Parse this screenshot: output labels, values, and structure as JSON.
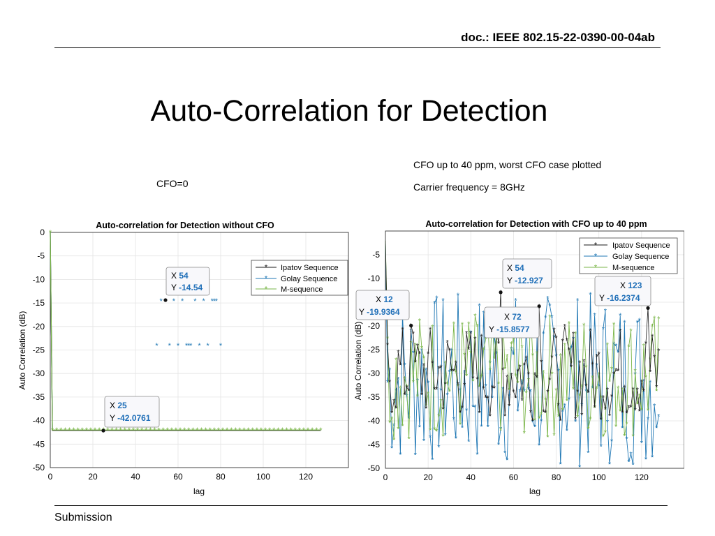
{
  "doc": {
    "id": "doc.: IEEE 802.15-22-0390-00-04ab"
  },
  "slide": {
    "title": "Auto-Correlation for Detection"
  },
  "notes": {
    "cfo_zero": "CFO=0",
    "cfo_worst": "CFO up to 40 ppm, worst CFO case plotted",
    "carrier": "Carrier frequency = 8GHz"
  },
  "footer": {
    "label": "Submission"
  },
  "colors": {
    "ipatov": "#1a1a1a",
    "golay": "#1f77b4",
    "mseq": "#7ab648",
    "datatip_value": "#1f6fb8"
  },
  "chart_data": [
    {
      "type": "scatter",
      "title": "Auto-correlation for Detection without CFO",
      "xlabel": "lag",
      "ylabel": "Auto Correlation (dB)",
      "xlim": [
        0,
        140
      ],
      "ylim": [
        -50,
        0
      ],
      "xticks": [
        0,
        20,
        40,
        60,
        80,
        100,
        120
      ],
      "yticks": [
        0,
        -5,
        -10,
        -15,
        -20,
        -25,
        -30,
        -35,
        -40,
        -45,
        -50
      ],
      "grid": true,
      "legend": [
        "Ipatov Sequence",
        "Golay Sequence",
        "M-sequence"
      ],
      "legend_position": "top-right",
      "series": [
        {
          "name": "Ipatov Sequence",
          "values": "0 at lag 0, then -42.0761 for lags 1-127"
        },
        {
          "name": "Golay Sequence",
          "points": [
            [
              0,
              0
            ],
            [
              50,
              -24
            ],
            [
              52,
              -14.54
            ],
            [
              54,
              -14.54
            ],
            [
              56,
              -24
            ],
            [
              58,
              -14.54
            ],
            [
              60,
              -24
            ],
            [
              62,
              -14.54
            ],
            [
              64,
              -24
            ],
            [
              65,
              -24
            ],
            [
              66,
              -24
            ],
            [
              68,
              -14.54
            ],
            [
              70,
              -24
            ],
            [
              72,
              -14.54
            ],
            [
              74,
              -24
            ],
            [
              76,
              -14.54
            ],
            [
              77,
              -14.54
            ],
            [
              78,
              -14.54
            ],
            [
              80,
              -24
            ]
          ],
          "floor": -42
        },
        {
          "name": "M-sequence",
          "values": "0 at lag 0, then -42 for lags 1-127"
        }
      ],
      "datatips": [
        {
          "x_label": "X",
          "x": "54",
          "y_label": "Y",
          "y": "-14.54"
        },
        {
          "x_label": "X",
          "x": "25",
          "y_label": "Y",
          "y": "-42.0761"
        }
      ]
    },
    {
      "type": "line",
      "title": "Auto-correlation for Detection with CFO up to 40 ppm",
      "xlabel": "lag",
      "ylabel": "Auto Correlation (dB)",
      "xlim": [
        0,
        140
      ],
      "ylim": [
        -50,
        0
      ],
      "xticks": [
        0,
        20,
        40,
        60,
        80,
        100,
        120
      ],
      "yticks": [
        -5,
        -10,
        -15,
        -20,
        -25,
        -30,
        -35,
        -40,
        -45,
        -50
      ],
      "grid": true,
      "legend": [
        "Ipatov Sequence",
        "Golay Sequence",
        "M-sequence"
      ],
      "legend_position": "top-right",
      "series": [
        {
          "name": "Ipatov Sequence",
          "range_db": [
            -49,
            -12.9
          ],
          "peaks": [
            [
              12,
              -19.9364
            ],
            [
              54,
              -12.927
            ],
            [
              72,
              -15.8577
            ],
            [
              123,
              -16.2374
            ]
          ]
        },
        {
          "name": "Golay Sequence",
          "range_db": [
            -50,
            -12
          ],
          "note": "fluctuating -15 to -50 dB over lags 0-128"
        },
        {
          "name": "M-sequence",
          "range_db": [
            -45,
            -16
          ],
          "note": "fluctuating -17 to -45 dB over lags 0-128"
        }
      ],
      "datatips": [
        {
          "x_label": "X",
          "x": "12",
          "y_label": "Y",
          "y": "-19.9364"
        },
        {
          "x_label": "X",
          "x": "54",
          "y_label": "Y",
          "y": "-12.927"
        },
        {
          "x_label": "X",
          "x": "72",
          "y_label": "Y",
          "y": "-15.8577"
        },
        {
          "x_label": "X",
          "x": "123",
          "y_label": "Y",
          "y": "-16.2374"
        }
      ]
    }
  ]
}
